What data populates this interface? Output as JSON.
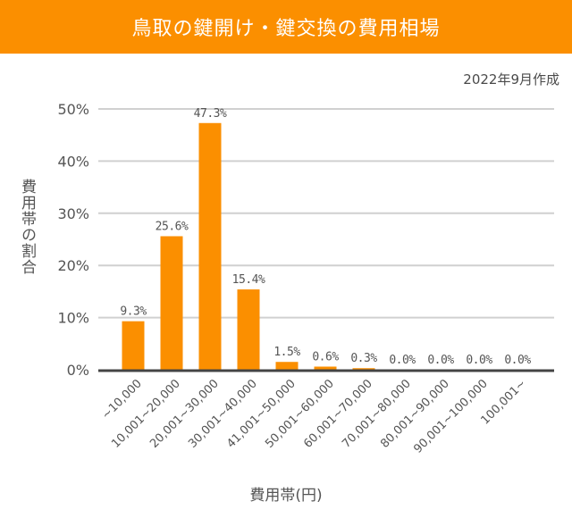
{
  "header": {
    "title": "鳥取の鍵開け・鍵交換の費用相場"
  },
  "date_note": "2022年9月作成",
  "chart_data": {
    "type": "bar",
    "title": "鳥取の鍵開け・鍵交換の費用相場",
    "xlabel": "費用帯(円)",
    "ylabel": "費用帯の割合",
    "ylim": [
      0,
      50
    ],
    "yticks": [
      "0%",
      "10%",
      "20%",
      "30%",
      "40%",
      "50%"
    ],
    "grid": true,
    "color": "#fb8f00",
    "categories": [
      "~10,000",
      "10,001~20,000",
      "20,001~30,000",
      "30,001~40,000",
      "41,001~50,000",
      "50,001~60,000",
      "60,001~70,000",
      "70,001~80,000",
      "80,001~90,000",
      "90,001~100,000",
      "100,001~"
    ],
    "values": [
      9.3,
      25.6,
      47.3,
      15.4,
      1.5,
      0.6,
      0.3,
      0.0,
      0.0,
      0.0,
      0.0
    ],
    "data_labels": [
      "9.3%",
      "25.6%",
      "47.3%",
      "15.4%",
      "1.5%",
      "0.6%",
      "0.3%",
      "0.0%",
      "0.0%",
      "0.0%",
      "0.0%"
    ]
  }
}
